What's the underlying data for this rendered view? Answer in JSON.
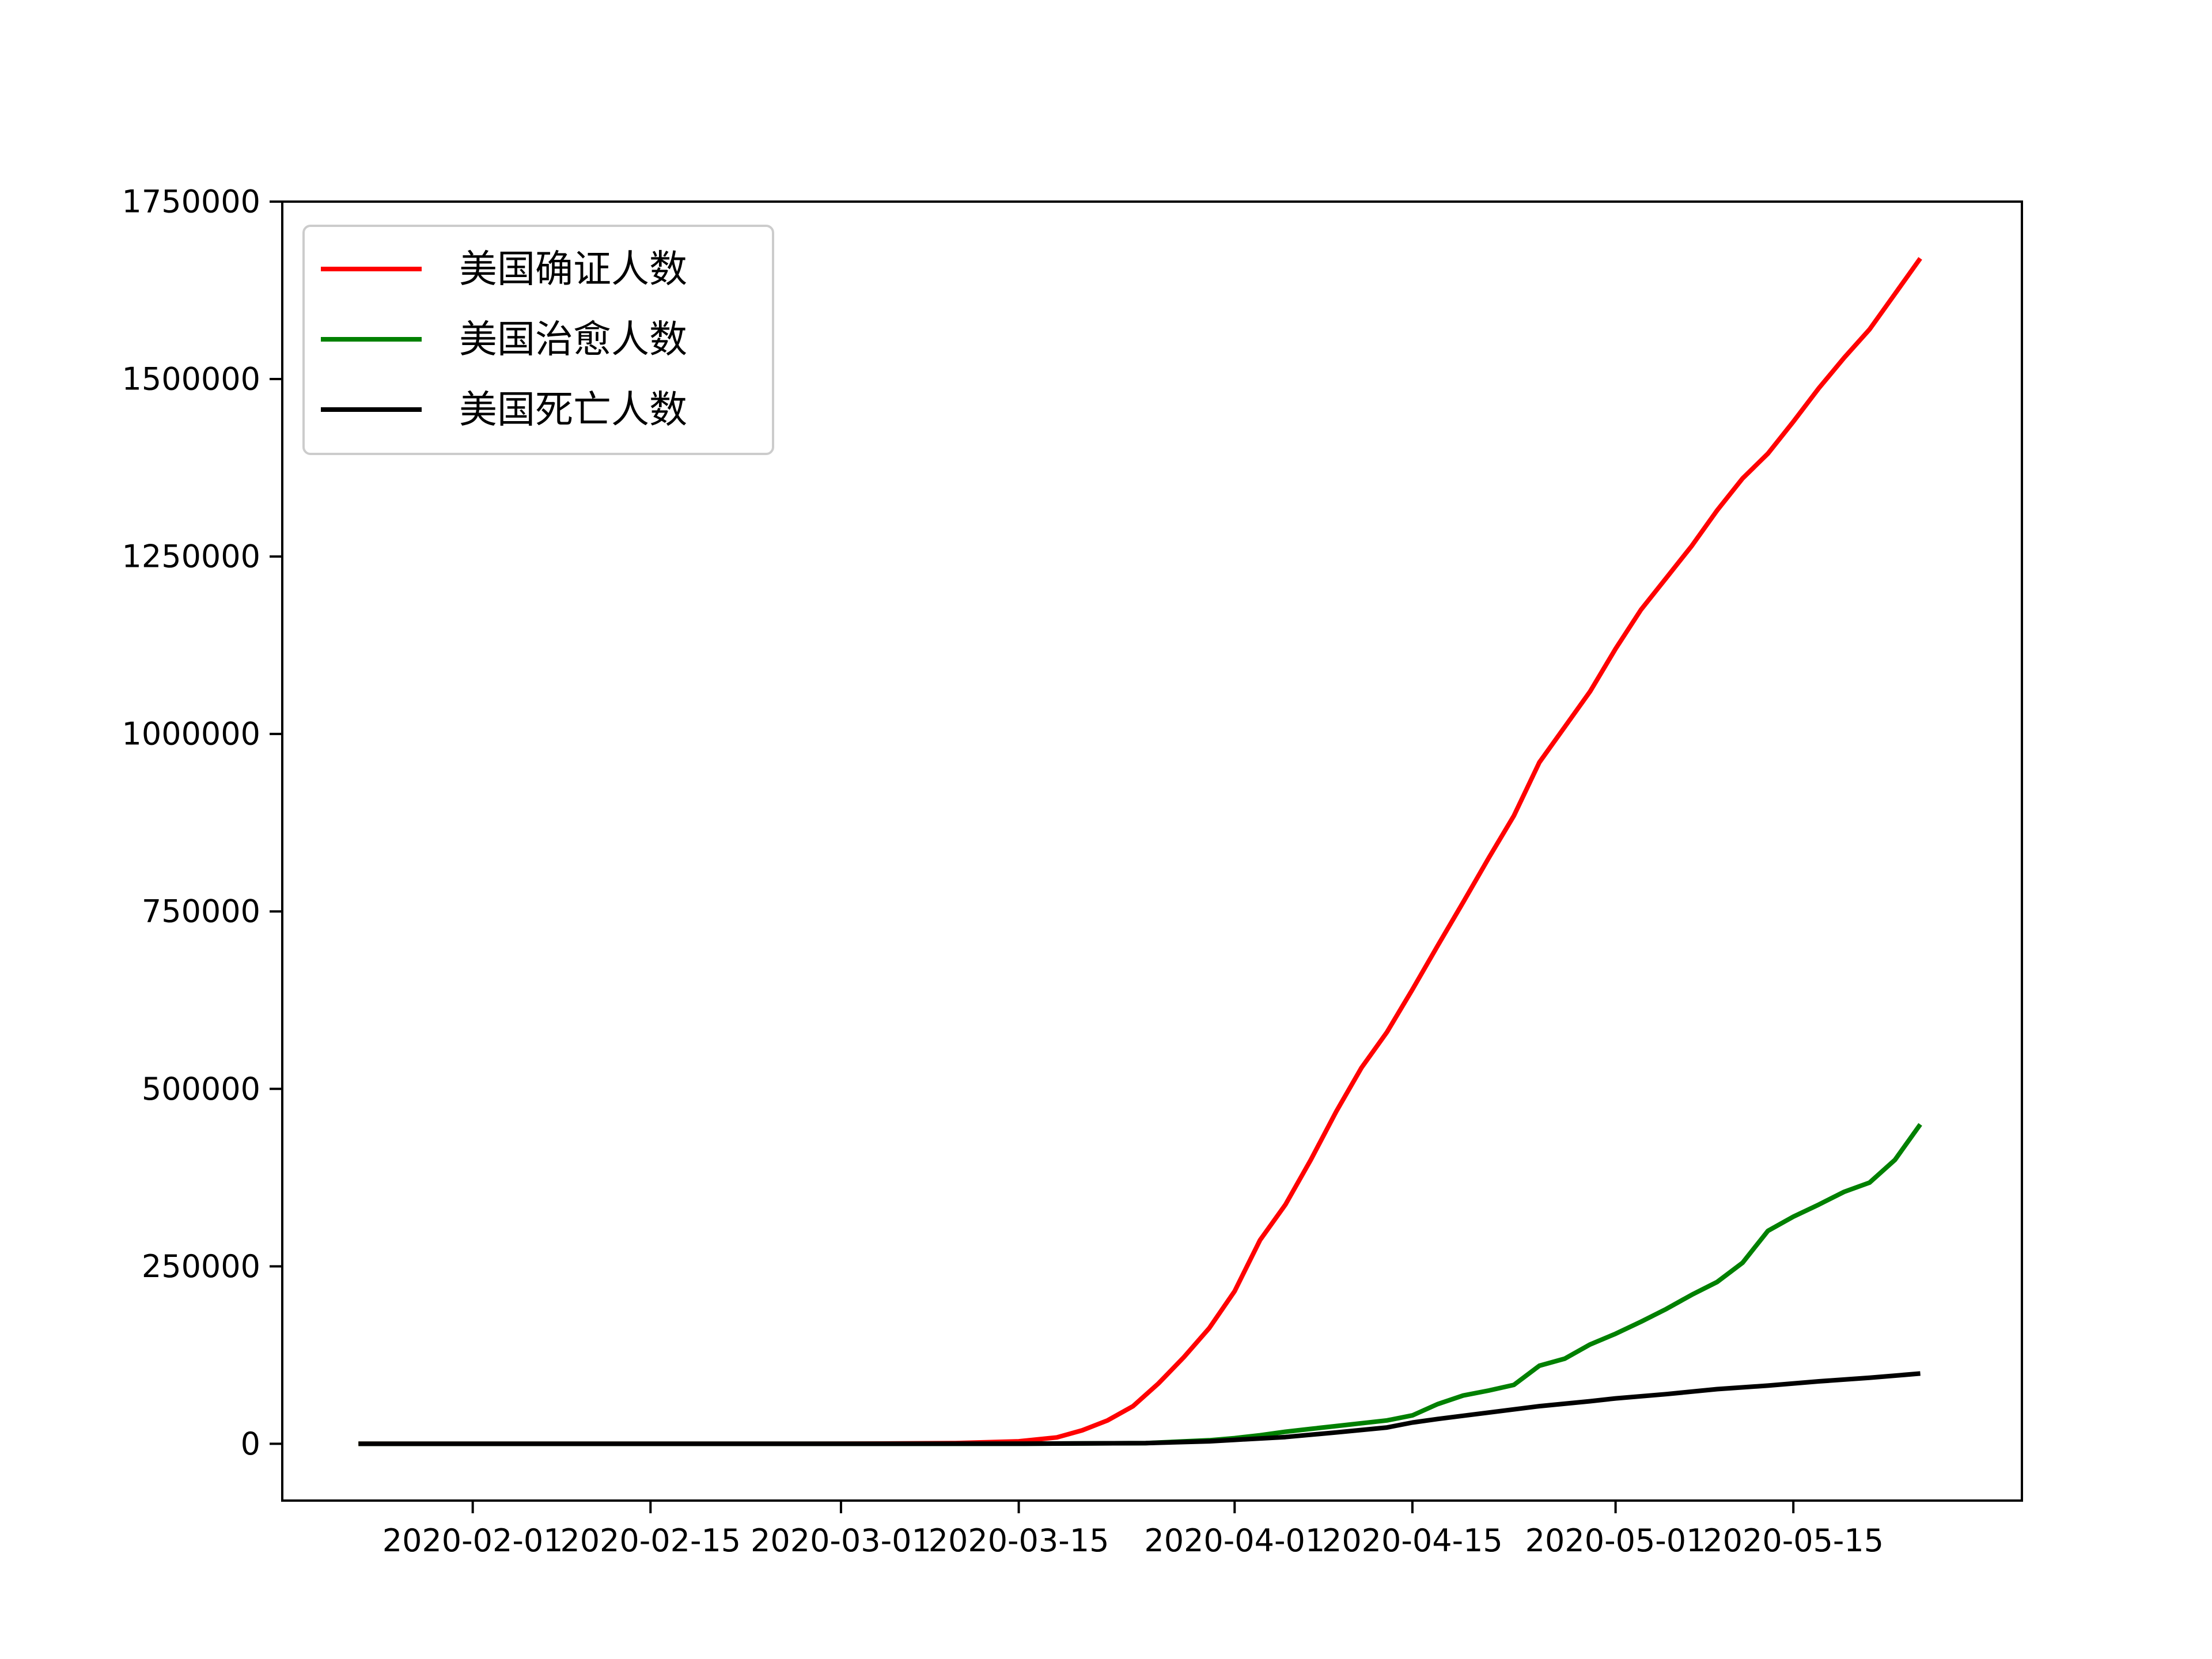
{
  "chart_data": {
    "type": "line",
    "title": "",
    "xlabel": "",
    "ylabel": "",
    "x_type": "date",
    "xlim": [
      "2020-01-17",
      "2020-06-02"
    ],
    "ylim": [
      -80000,
      1750000
    ],
    "y_ticks": [
      0,
      250000,
      500000,
      750000,
      1000000,
      1250000,
      1500000,
      1750000
    ],
    "x_ticks": [
      "2020-02-01",
      "2020-02-15",
      "2020-03-01",
      "2020-03-15",
      "2020-04-01",
      "2020-04-15",
      "2020-05-01",
      "2020-05-15"
    ],
    "grid": false,
    "legend_position": "upper-left",
    "series": [
      {
        "name": "美国确证人数",
        "color": "#ff0000",
        "points": [
          [
            "2020-01-23",
            0
          ],
          [
            "2020-02-15",
            15
          ],
          [
            "2020-03-01",
            75
          ],
          [
            "2020-03-10",
            1000
          ],
          [
            "2020-03-15",
            3500
          ],
          [
            "2020-03-18",
            9000
          ],
          [
            "2020-03-20",
            19000
          ],
          [
            "2020-03-22",
            33000
          ],
          [
            "2020-03-24",
            53000
          ],
          [
            "2020-03-26",
            85000
          ],
          [
            "2020-03-28",
            122000
          ],
          [
            "2020-03-30",
            163000
          ],
          [
            "2020-04-01",
            215000
          ],
          [
            "2020-04-03",
            287000
          ],
          [
            "2020-04-05",
            337000
          ],
          [
            "2020-04-07",
            400000
          ],
          [
            "2020-04-09",
            468000
          ],
          [
            "2020-04-11",
            530000
          ],
          [
            "2020-04-13",
            580000
          ],
          [
            "2020-04-15",
            640000
          ],
          [
            "2020-04-17",
            702000
          ],
          [
            "2020-04-19",
            763000
          ],
          [
            "2020-04-21",
            825000
          ],
          [
            "2020-04-23",
            885000
          ],
          [
            "2020-04-25",
            960000
          ],
          [
            "2020-04-27",
            1010000
          ],
          [
            "2020-04-29",
            1060000
          ],
          [
            "2020-05-01",
            1120000
          ],
          [
            "2020-05-03",
            1175000
          ],
          [
            "2020-05-05",
            1220000
          ],
          [
            "2020-05-07",
            1265000
          ],
          [
            "2020-05-09",
            1315000
          ],
          [
            "2020-05-11",
            1360000
          ],
          [
            "2020-05-13",
            1395000
          ],
          [
            "2020-05-15",
            1440000
          ],
          [
            "2020-05-17",
            1487000
          ],
          [
            "2020-05-19",
            1530000
          ],
          [
            "2020-05-21",
            1570000
          ],
          [
            "2020-05-23",
            1620000
          ],
          [
            "2020-05-25",
            1670000
          ]
        ]
      },
      {
        "name": "美国治愈人数",
        "color": "#008000",
        "points": [
          [
            "2020-01-23",
            0
          ],
          [
            "2020-03-01",
            5
          ],
          [
            "2020-03-15",
            100
          ],
          [
            "2020-03-25",
            1000
          ],
          [
            "2020-03-30",
            5000
          ],
          [
            "2020-04-01",
            8000
          ],
          [
            "2020-04-03",
            12000
          ],
          [
            "2020-04-05",
            17000
          ],
          [
            "2020-04-07",
            21000
          ],
          [
            "2020-04-09",
            25000
          ],
          [
            "2020-04-11",
            29000
          ],
          [
            "2020-04-13",
            33000
          ],
          [
            "2020-04-15",
            40000
          ],
          [
            "2020-04-17",
            56000
          ],
          [
            "2020-04-19",
            68000
          ],
          [
            "2020-04-21",
            75000
          ],
          [
            "2020-04-23",
            83000
          ],
          [
            "2020-04-25",
            110000
          ],
          [
            "2020-04-27",
            120000
          ],
          [
            "2020-04-29",
            140000
          ],
          [
            "2020-05-01",
            155000
          ],
          [
            "2020-05-03",
            172000
          ],
          [
            "2020-05-05",
            190000
          ],
          [
            "2020-05-07",
            210000
          ],
          [
            "2020-05-09",
            228000
          ],
          [
            "2020-05-11",
            255000
          ],
          [
            "2020-05-13",
            300000
          ],
          [
            "2020-05-15",
            320000
          ],
          [
            "2020-05-17",
            337000
          ],
          [
            "2020-05-19",
            355000
          ],
          [
            "2020-05-21",
            368000
          ],
          [
            "2020-05-23",
            400000
          ],
          [
            "2020-05-25",
            450000
          ]
        ]
      },
      {
        "name": "美国死亡人数",
        "color": "#000000",
        "points": [
          [
            "2020-01-23",
            0
          ],
          [
            "2020-03-15",
            70
          ],
          [
            "2020-03-25",
            1000
          ],
          [
            "2020-03-30",
            3500
          ],
          [
            "2020-04-01",
            5500
          ],
          [
            "2020-04-05",
            9500
          ],
          [
            "2020-04-09",
            16000
          ],
          [
            "2020-04-13",
            23000
          ],
          [
            "2020-04-15",
            30000
          ],
          [
            "2020-04-17",
            35000
          ],
          [
            "2020-04-21",
            44000
          ],
          [
            "2020-04-25",
            53000
          ],
          [
            "2020-04-29",
            60000
          ],
          [
            "2020-05-01",
            64000
          ],
          [
            "2020-05-05",
            70000
          ],
          [
            "2020-05-09",
            77000
          ],
          [
            "2020-05-13",
            82000
          ],
          [
            "2020-05-17",
            88000
          ],
          [
            "2020-05-21",
            93000
          ],
          [
            "2020-05-25",
            99000
          ]
        ]
      }
    ]
  }
}
